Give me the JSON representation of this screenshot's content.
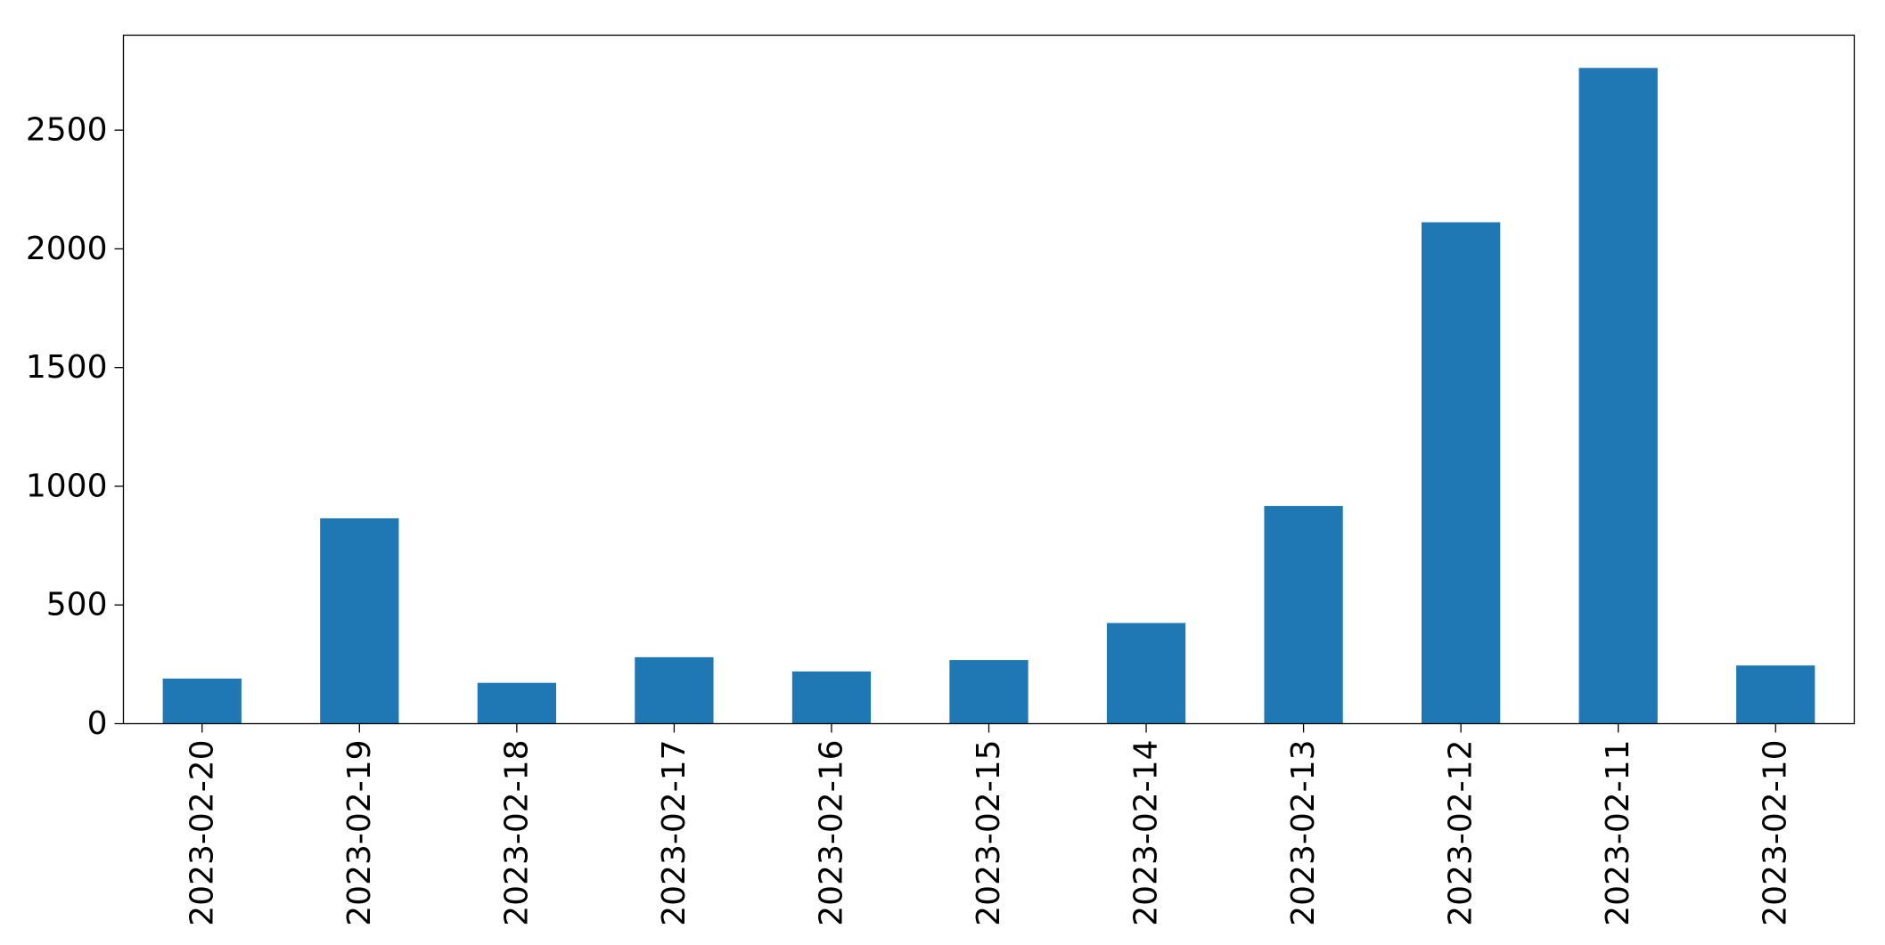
{
  "chart_data": {
    "type": "bar",
    "title": "",
    "xlabel": "",
    "ylabel": "",
    "categories": [
      "2023-02-20",
      "2023-02-19",
      "2023-02-18",
      "2023-02-17",
      "2023-02-16",
      "2023-02-15",
      "2023-02-14",
      "2023-02-13",
      "2023-02-12",
      "2023-02-11",
      "2023-02-10"
    ],
    "values": [
      190,
      865,
      172,
      280,
      220,
      268,
      424,
      917,
      2112,
      2762,
      245
    ],
    "ylim": [
      0,
      2900
    ],
    "yticks": [
      0,
      500,
      1000,
      1500,
      2000,
      2500
    ],
    "ytick_labels": [
      "0",
      "500",
      "1000",
      "1500",
      "2000",
      "2500"
    ],
    "bar_color": "#1f77b4",
    "grid": false,
    "legend": "none"
  }
}
